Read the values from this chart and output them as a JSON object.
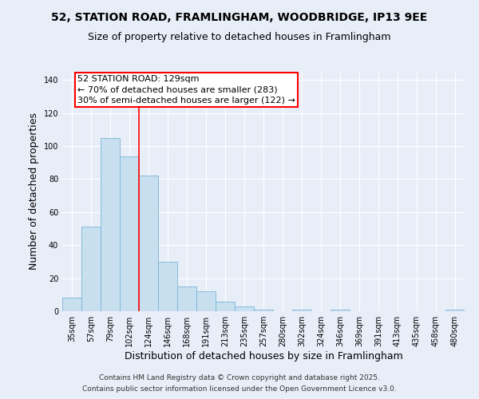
{
  "title1": "52, STATION ROAD, FRAMLINGHAM, WOODBRIDGE, IP13 9EE",
  "title2": "Size of property relative to detached houses in Framlingham",
  "xlabel": "Distribution of detached houses by size in Framlingham",
  "ylabel": "Number of detached properties",
  "bar_labels": [
    "35sqm",
    "57sqm",
    "79sqm",
    "102sqm",
    "124sqm",
    "146sqm",
    "168sqm",
    "191sqm",
    "213sqm",
    "235sqm",
    "257sqm",
    "280sqm",
    "302sqm",
    "324sqm",
    "346sqm",
    "369sqm",
    "391sqm",
    "413sqm",
    "435sqm",
    "458sqm",
    "480sqm"
  ],
  "bar_values": [
    8,
    51,
    105,
    94,
    82,
    30,
    15,
    12,
    6,
    3,
    1,
    0,
    1,
    0,
    1,
    0,
    0,
    0,
    0,
    0,
    1
  ],
  "bar_color": "#c8dff0",
  "bar_edge_color": "#7ab4d4",
  "vline_color": "red",
  "vline_x_index": 4,
  "annotation_title": "52 STATION ROAD: 129sqm",
  "annotation_line1": "← 70% of detached houses are smaller (283)",
  "annotation_line2": "30% of semi-detached houses are larger (122) →",
  "annotation_box_color": "white",
  "annotation_box_edge": "red",
  "ylim": [
    0,
    145
  ],
  "yticks": [
    0,
    20,
    40,
    60,
    80,
    100,
    120,
    140
  ],
  "footer1": "Contains HM Land Registry data © Crown copyright and database right 2025.",
  "footer2": "Contains public sector information licensed under the Open Government Licence v3.0.",
  "background_color": "#e8eef8",
  "plot_bg_color": "#e8eef8",
  "grid_color": "#ffffff",
  "title_fontsize": 10,
  "subtitle_fontsize": 9,
  "axis_label_fontsize": 9,
  "tick_fontsize": 7,
  "footer_fontsize": 6.5,
  "annotation_fontsize": 8
}
